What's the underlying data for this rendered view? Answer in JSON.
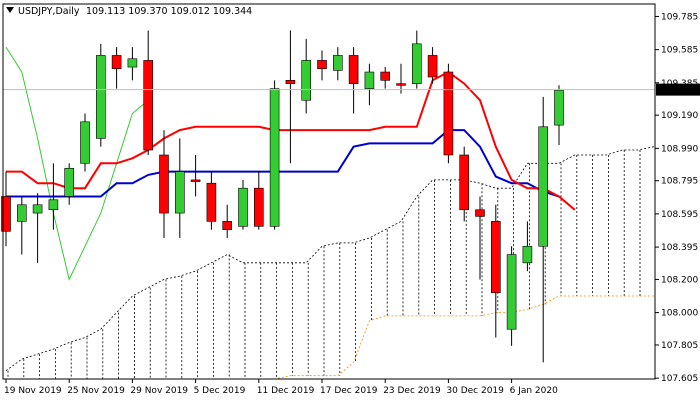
{
  "header": {
    "symbol": "USDJPY,Daily",
    "ohlc": "109.113 109.370 109.012 109.344"
  },
  "colors": {
    "background": "#ffffff",
    "frame": "#000000",
    "bull_candle": "#33cc33",
    "bear_candle": "#ff0000",
    "tenkan": "#ff0000",
    "kijun": "#0000cc",
    "chikou": "#33cc33",
    "senkou_a": "#000000",
    "senkou_b": "#ff8800",
    "price_label_bg": "#000000",
    "price_label_text": "#ffffff"
  },
  "chart_data": {
    "type": "candlestick",
    "title": "USDJPY,Daily",
    "ylim": [
      107.6,
      109.86
    ],
    "y_ticks": [
      "109.785",
      "109.585",
      "109.385",
      "109.190",
      "108.990",
      "108.795",
      "108.595",
      "108.395",
      "108.200",
      "108.000",
      "107.805",
      "107.605"
    ],
    "x_tick_labels": [
      "19 Nov 2019",
      "25 Nov 2019",
      "29 Nov 2019",
      "5 Dec 2019",
      "11 Dec 2019",
      "17 Dec 2019",
      "23 Dec 2019",
      "30 Dec 2019",
      "6 Jan 2020"
    ],
    "x_tick_index": [
      0,
      4,
      8,
      12,
      16,
      20,
      24,
      28,
      32
    ],
    "current_price": "109.344",
    "grid": false,
    "candles": [
      {
        "o": 108.7,
        "h": 108.85,
        "l": 108.4,
        "c": 108.49
      },
      {
        "o": 108.55,
        "h": 108.7,
        "l": 108.35,
        "c": 108.65
      },
      {
        "o": 108.6,
        "h": 108.72,
        "l": 108.3,
        "c": 108.65
      },
      {
        "o": 108.62,
        "h": 108.9,
        "l": 108.5,
        "c": 108.68
      },
      {
        "o": 108.7,
        "h": 108.9,
        "l": 108.65,
        "c": 108.87
      },
      {
        "o": 108.9,
        "h": 109.2,
        "l": 108.85,
        "c": 109.15
      },
      {
        "o": 109.05,
        "h": 109.62,
        "l": 109.0,
        "c": 109.55
      },
      {
        "o": 109.55,
        "h": 109.6,
        "l": 109.35,
        "c": 109.47
      },
      {
        "o": 109.48,
        "h": 109.6,
        "l": 109.4,
        "c": 109.53
      },
      {
        "o": 109.52,
        "h": 109.7,
        "l": 108.95,
        "c": 108.98
      },
      {
        "o": 108.95,
        "h": 109.1,
        "l": 108.45,
        "c": 108.6
      },
      {
        "o": 108.6,
        "h": 109.05,
        "l": 108.45,
        "c": 108.85
      },
      {
        "o": 108.8,
        "h": 108.95,
        "l": 108.7,
        "c": 108.79
      },
      {
        "o": 108.78,
        "h": 108.85,
        "l": 108.5,
        "c": 108.55
      },
      {
        "o": 108.55,
        "h": 108.65,
        "l": 108.45,
        "c": 108.5
      },
      {
        "o": 108.52,
        "h": 108.8,
        "l": 108.5,
        "c": 108.75
      },
      {
        "o": 108.75,
        "h": 108.85,
        "l": 108.5,
        "c": 108.52
      },
      {
        "o": 108.52,
        "h": 109.4,
        "l": 108.5,
        "c": 109.35
      },
      {
        "o": 109.4,
        "h": 109.7,
        "l": 108.9,
        "c": 109.38
      },
      {
        "o": 109.28,
        "h": 109.65,
        "l": 109.2,
        "c": 109.52
      },
      {
        "o": 109.52,
        "h": 109.58,
        "l": 109.4,
        "c": 109.47
      },
      {
        "o": 109.46,
        "h": 109.6,
        "l": 109.4,
        "c": 109.55
      },
      {
        "o": 109.55,
        "h": 109.6,
        "l": 109.2,
        "c": 109.38
      },
      {
        "o": 109.35,
        "h": 109.5,
        "l": 109.25,
        "c": 109.45
      },
      {
        "o": 109.45,
        "h": 109.48,
        "l": 109.35,
        "c": 109.4
      },
      {
        "o": 109.38,
        "h": 109.5,
        "l": 109.32,
        "c": 109.37
      },
      {
        "o": 109.38,
        "h": 109.7,
        "l": 109.35,
        "c": 109.62
      },
      {
        "o": 109.55,
        "h": 109.6,
        "l": 109.38,
        "c": 109.42
      },
      {
        "o": 109.45,
        "h": 109.5,
        "l": 108.9,
        "c": 108.95
      },
      {
        "o": 108.95,
        "h": 109.0,
        "l": 108.55,
        "c": 108.62
      },
      {
        "o": 108.62,
        "h": 108.7,
        "l": 108.2,
        "c": 108.58
      },
      {
        "o": 108.55,
        "h": 108.65,
        "l": 107.85,
        "c": 108.12
      },
      {
        "o": 107.9,
        "h": 108.4,
        "l": 107.8,
        "c": 108.35
      },
      {
        "o": 108.3,
        "h": 108.55,
        "l": 108.25,
        "c": 108.4
      },
      {
        "o": 108.4,
        "h": 109.3,
        "l": 107.7,
        "c": 109.12
      },
      {
        "o": 109.13,
        "h": 109.37,
        "l": 109.01,
        "c": 109.34
      }
    ],
    "series": [
      {
        "key": "tenkan",
        "values": [
          108.85,
          108.85,
          108.78,
          108.78,
          108.75,
          108.75,
          108.9,
          108.9,
          108.93,
          108.98,
          109.05,
          109.1,
          109.12,
          109.12,
          109.12,
          109.12,
          109.12,
          109.1,
          109.1,
          109.1,
          109.1,
          109.1,
          109.1,
          109.1,
          109.12,
          109.12,
          109.12,
          109.4,
          109.45,
          109.38,
          109.28,
          109.0,
          108.8,
          108.75,
          108.75,
          108.7,
          108.62
        ],
        "start": 0
      },
      {
        "key": "kijun",
        "values": [
          108.7,
          108.7,
          108.7,
          108.7,
          108.7,
          108.7,
          108.7,
          108.78,
          108.78,
          108.83,
          108.85,
          108.85,
          108.85,
          108.85,
          108.85,
          108.85,
          108.85,
          108.85,
          108.85,
          108.85,
          108.85,
          108.85,
          109.0,
          109.02,
          109.02,
          109.02,
          109.02,
          109.02,
          109.1,
          109.1,
          109.0,
          108.82,
          108.78,
          108.78,
          108.73,
          108.7
        ],
        "start": 0
      },
      {
        "key": "chikou",
        "values": [
          109.6,
          109.45,
          109.05,
          108.6,
          108.2,
          108.4,
          108.6,
          108.9,
          109.2,
          109.28
        ],
        "start": 0
      },
      {
        "key": "senkou_a",
        "values": [
          107.65,
          107.72,
          107.75,
          107.78,
          107.82,
          107.85,
          107.9,
          108.0,
          108.1,
          108.15,
          108.2,
          108.22,
          108.25,
          108.3,
          108.35,
          108.3,
          108.3,
          108.3,
          108.3,
          108.3,
          108.4,
          108.42,
          108.42,
          108.45,
          108.5,
          108.55,
          108.7,
          108.8,
          108.8,
          108.8,
          108.78,
          108.75,
          108.75,
          108.9,
          108.9,
          108.9,
          108.95,
          108.95,
          108.95,
          108.98,
          108.98,
          109.0,
          109.05
        ],
        "start": 0
      },
      {
        "key": "senkou_b",
        "values": [
          107.6,
          107.6,
          107.6,
          107.6,
          107.6,
          107.6,
          107.6,
          107.6,
          107.6,
          107.6,
          107.6,
          107.6,
          107.6,
          107.6,
          107.6,
          107.6,
          107.6,
          107.6,
          107.62,
          107.62,
          107.62,
          107.62,
          107.7,
          107.95,
          107.98,
          107.98,
          107.98,
          107.98,
          107.98,
          107.98,
          107.98,
          108.0,
          108.0,
          108.02,
          108.05,
          108.1,
          108.1,
          108.1,
          108.1,
          108.1,
          108.1,
          108.1,
          108.1
        ],
        "start": 0
      }
    ]
  }
}
